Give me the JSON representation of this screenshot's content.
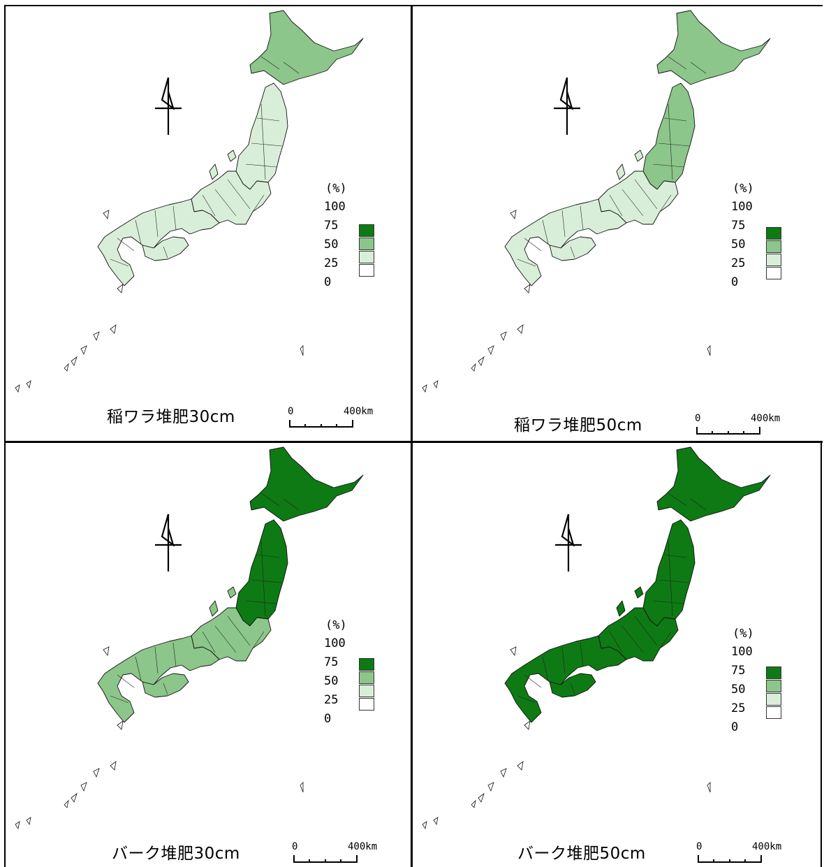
{
  "colors": {
    "c0_25": "#ffffff",
    "c25_50": "#d9eed8",
    "c50_75": "#8cc68a",
    "c75_100": "#0e7a14"
  },
  "legend": {
    "unit": "(%)",
    "labels": [
      "100",
      "75",
      "50",
      "25",
      "0"
    ]
  },
  "scale": {
    "zero": "0",
    "distance": "400km"
  },
  "panels": [
    {
      "title": "稲ワラ堆肥30cm",
      "north": "c50_75",
      "tohoku": "c25_50",
      "kanto_chubu": "c25_50",
      "west": "c25_50"
    },
    {
      "title": "稲ワラ堆肥50cm",
      "north": "c50_75",
      "tohoku": "c50_75",
      "kanto_chubu": "c25_50",
      "west": "c25_50"
    },
    {
      "title": "バーク堆肥30cm",
      "north": "c75_100",
      "tohoku": "c75_100",
      "kanto_chubu": "c50_75",
      "west": "c50_75"
    },
    {
      "title": "バーク堆肥50cm",
      "north": "c75_100",
      "tohoku": "c75_100",
      "kanto_chubu": "c75_100",
      "west": "c75_100"
    }
  ]
}
